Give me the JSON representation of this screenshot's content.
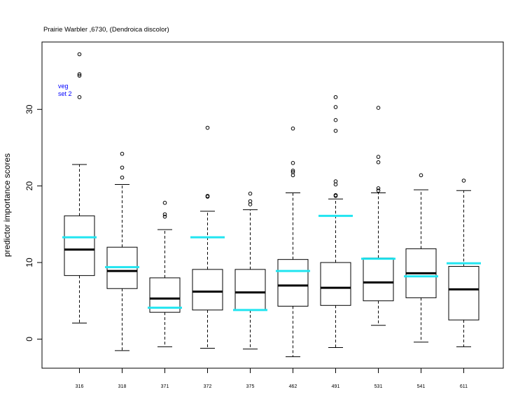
{
  "chart_data": {
    "type": "box",
    "title": "Prairie Warbler ,6730, (Dendroica discolor)",
    "ylabel": "predictor importance scores",
    "xlabel": "",
    "ylim": [
      -3.8,
      38.8
    ],
    "yticks": [
      0,
      10,
      20,
      30
    ],
    "grid": false,
    "legend": {
      "position": "top-left",
      "lines": [
        "veg",
        "set 2"
      ],
      "color": "#0000ff"
    },
    "reference_color": "#22e5f0",
    "categories": [
      "316",
      "318",
      "371",
      "372",
      "375",
      "462",
      "491",
      "531",
      "541",
      "611"
    ],
    "boxes": [
      {
        "min": 2.1,
        "q1": 8.3,
        "median": 11.7,
        "q3": 16.1,
        "max": 22.8,
        "outliers": [
          31.6,
          34.4,
          34.6,
          37.2
        ],
        "reference": 13.3
      },
      {
        "min": -1.5,
        "q1": 6.6,
        "median": 8.9,
        "q3": 12.0,
        "max": 20.2,
        "outliers": [
          21.1,
          22.4,
          24.2
        ],
        "reference": 9.4
      },
      {
        "min": -1.0,
        "q1": 3.5,
        "median": 5.3,
        "q3": 8.0,
        "max": 14.3,
        "outliers": [
          16.0,
          16.3,
          17.8
        ],
        "reference": 4.1
      },
      {
        "min": -1.2,
        "q1": 3.8,
        "median": 6.2,
        "q3": 9.1,
        "max": 16.7,
        "outliers": [
          18.6,
          18.7,
          27.6
        ],
        "reference": 13.3
      },
      {
        "min": -1.3,
        "q1": 3.8,
        "median": 6.1,
        "q3": 9.1,
        "max": 16.9,
        "outliers": [
          17.6,
          18.0,
          19.0
        ],
        "reference": 3.8
      },
      {
        "min": -2.3,
        "q1": 4.3,
        "median": 7.0,
        "q3": 10.4,
        "max": 19.1,
        "outliers": [
          21.4,
          21.8,
          22.0,
          23.0,
          27.5
        ],
        "reference": 8.9
      },
      {
        "min": -1.1,
        "q1": 4.4,
        "median": 6.7,
        "q3": 10.0,
        "max": 18.3,
        "outliers": [
          18.7,
          18.8,
          20.2,
          20.6,
          27.2,
          28.6,
          30.3,
          31.6
        ],
        "reference": 16.1
      },
      {
        "min": 1.8,
        "q1": 5.0,
        "median": 7.4,
        "q3": 10.6,
        "max": 19.1,
        "outliers": [
          19.4,
          19.7,
          23.1,
          23.8,
          30.2
        ],
        "reference": 10.5
      },
      {
        "min": -0.4,
        "q1": 5.4,
        "median": 8.6,
        "q3": 11.8,
        "max": 19.5,
        "outliers": [
          21.4
        ],
        "reference": 8.2
      },
      {
        "min": -1.0,
        "q1": 2.5,
        "median": 6.5,
        "q3": 9.5,
        "max": 19.4,
        "outliers": [
          20.7
        ],
        "reference": 9.9
      }
    ]
  }
}
